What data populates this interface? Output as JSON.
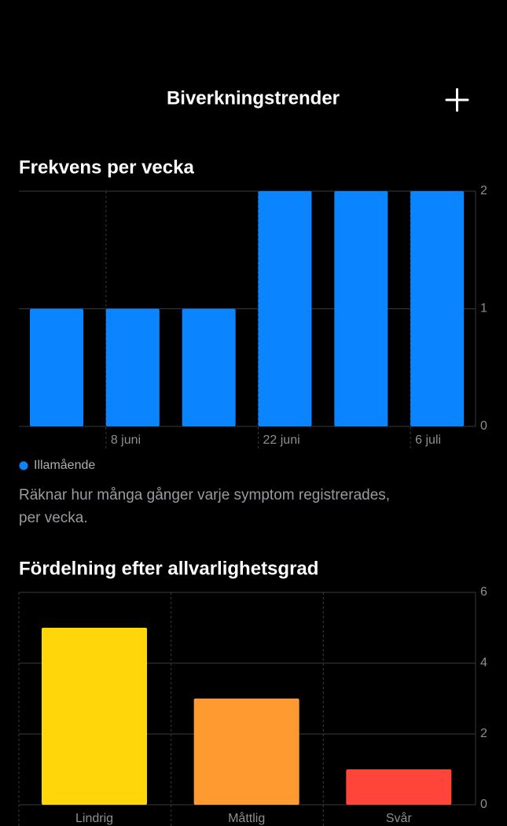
{
  "header": {
    "title": "Biverkningstrender"
  },
  "chart_data": [
    {
      "type": "bar",
      "title": "Frekvens per vecka",
      "categories": [
        null,
        "8 juni",
        null,
        "22 juni",
        null,
        "6 juli"
      ],
      "series": [
        {
          "name": "Illamående",
          "color": "#0a84ff",
          "values": [
            1,
            1,
            1,
            2,
            2,
            2
          ]
        }
      ],
      "ylim": [
        0,
        2
      ],
      "yticks": [
        0,
        1,
        2
      ],
      "grid": true,
      "annotation": [
        "Räknar hur många gånger varje symptom registrerades,",
        "per vecka."
      ]
    },
    {
      "type": "bar",
      "title": "Fördelning efter allvarlighetsgrad",
      "categories": [
        "Lindrig",
        "Måttlig",
        "Svår"
      ],
      "values": [
        5,
        3,
        1
      ],
      "colors": [
        "#ffd60a",
        "#ff9a30",
        "#ff453a"
      ],
      "ylim": [
        0,
        6
      ],
      "yticks": [
        0,
        2,
        4,
        6
      ],
      "grid": true
    }
  ]
}
